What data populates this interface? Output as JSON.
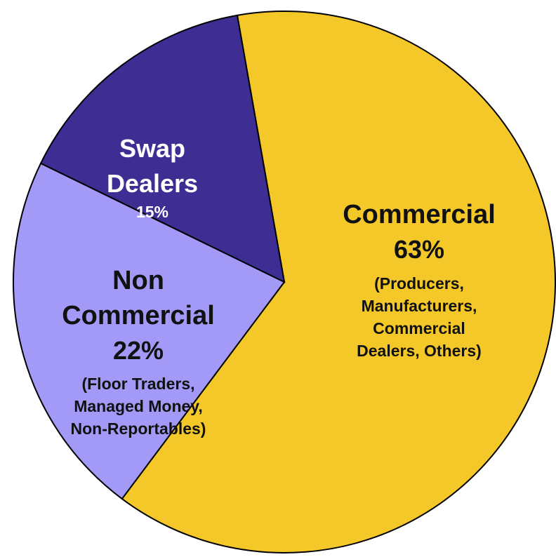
{
  "chart_data": {
    "type": "pie",
    "slices": [
      {
        "name": "Commercial",
        "value": 63,
        "percent_label": "63%",
        "detail": [
          "(Producers,",
          "Manufacturers,",
          "Commercial",
          "Dealers, Others)"
        ],
        "color": "#F5C82A"
      },
      {
        "name": "Non Commercial",
        "name_lines": [
          "Non",
          "Commercial"
        ],
        "value": 22,
        "percent_label": "22%",
        "detail": [
          "(Floor Traders,",
          "Managed Money,",
          "Non-Reportables)"
        ],
        "color": "#A399F7"
      },
      {
        "name": "Swap Dealers",
        "name_lines": [
          "Swap",
          "Dealers"
        ],
        "value": 15,
        "percent_label": "15%",
        "detail": [],
        "color": "#3E2E94"
      }
    ],
    "title": "",
    "legend": "none",
    "label_color_dark": "#111111",
    "label_color_light": "#ffffff",
    "outline_color": "#000000"
  }
}
